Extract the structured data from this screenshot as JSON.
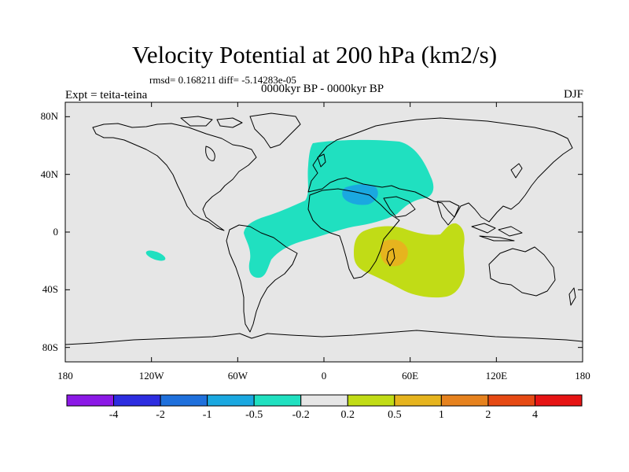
{
  "title": "Velocity Potential at 200 hPa (km2/s)",
  "stats": "rmsd= 0.168211  diff= -5.14283e-05",
  "period": "0000kyr BP - 0000kyr BP",
  "experiment": "Expt = teita-teina",
  "season": "DJF",
  "map": {
    "lon_range": [
      -180,
      180
    ],
    "lat_range": [
      -90,
      90
    ],
    "lat_ticks": [
      {
        "value": 80,
        "label": "80N"
      },
      {
        "value": 40,
        "label": "40N"
      },
      {
        "value": 0,
        "label": "0"
      },
      {
        "value": -40,
        "label": "40S"
      },
      {
        "value": -80,
        "label": "80S"
      }
    ],
    "lon_ticks": [
      {
        "value": -180,
        "label": "180"
      },
      {
        "value": -120,
        "label": "120W"
      },
      {
        "value": -60,
        "label": "60W"
      },
      {
        "value": 0,
        "label": "0"
      },
      {
        "value": 60,
        "label": "60E"
      },
      {
        "value": 120,
        "label": "120E"
      },
      {
        "value": 180,
        "label": "180"
      }
    ],
    "background_color": "#e6e6e6",
    "coastline_color": "#000000"
  },
  "colorbar": {
    "colors": [
      "#8b19e6",
      "#2d2de0",
      "#1f70dc",
      "#1aa8e0",
      "#20e0c0",
      "#e6e6e6",
      "#c1dc16",
      "#e6b41e",
      "#e6821e",
      "#e64a14",
      "#e61414"
    ],
    "labels": [
      "-4",
      "-2",
      "-1",
      "-0.5",
      "-0.2",
      "0.2",
      "0.5",
      "1",
      "2",
      "4"
    ]
  }
}
